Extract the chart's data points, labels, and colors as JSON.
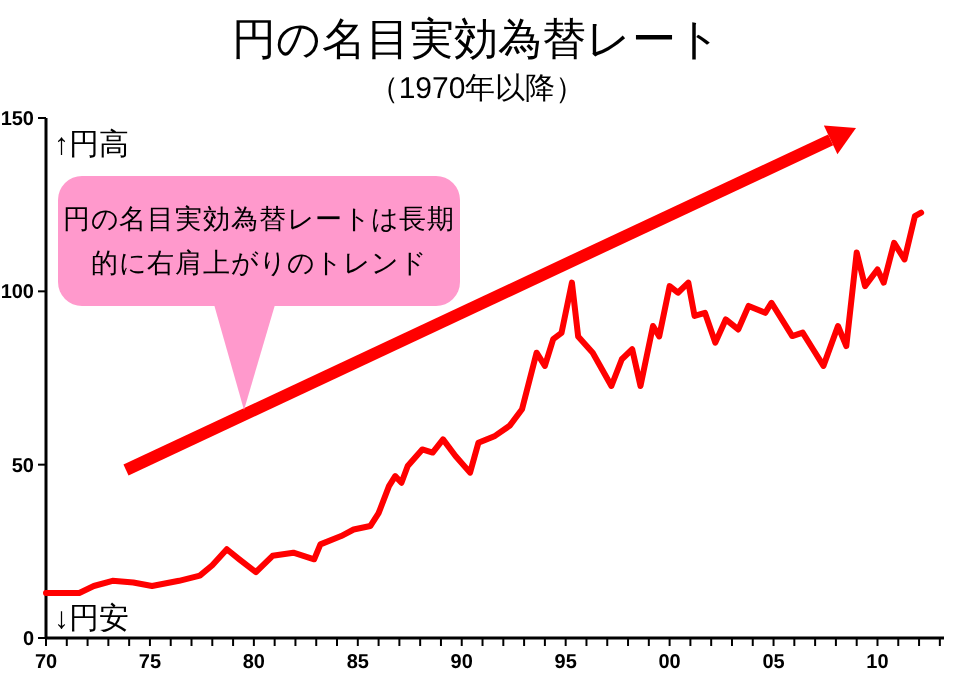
{
  "chart_data": {
    "type": "line",
    "title": "円の名目実効為替レート",
    "subtitle": "（1970年以降）",
    "annotations": [
      "円の名目実効為替レートは長期的に右肩上がりのトレンド",
      "↑円高",
      "↓円安"
    ],
    "x": [
      1970,
      1971.6,
      1972.3,
      1973.2,
      1974.2,
      1975.1,
      1976.4,
      1977.4,
      1978,
      1978.7,
      1979.3,
      1980.1,
      1980.9,
      1981.9,
      1982.9,
      1983.2,
      1984.2,
      1984.8,
      1985.6,
      1986,
      1986.5,
      1986.8,
      1987.1,
      1987.4,
      1988.1,
      1988.6,
      1989.1,
      1989.7,
      1990.4,
      1990.8,
      1991.6,
      1992.3,
      1992.9,
      1993.6,
      1994,
      1994.4,
      1994.8,
      1995.3,
      1995.6,
      1996.3,
      1997.2,
      1997.7,
      1998.2,
      1998.6,
      1999.2,
      1999.5,
      2000,
      2000.4,
      2000.9,
      2001.2,
      2001.7,
      2002.2,
      2002.7,
      2003.3,
      2003.8,
      2004.6,
      2004.9,
      2005.9,
      2006.4,
      2006.9,
      2007.4,
      2008.1,
      2008.5,
      2009,
      2009.4,
      2010,
      2010.3,
      2010.8,
      2011.3,
      2011.8,
      2012.1
    ],
    "series": [
      {
        "color": "#ff0000",
        "values": [
          13,
          13,
          15,
          16.5,
          16,
          15,
          16.5,
          18,
          21,
          25.6,
          22.7,
          19,
          23.7,
          24.6,
          22.7,
          27,
          29.4,
          31.3,
          32.3,
          36,
          43.8,
          46.7,
          44.8,
          49.6,
          54.4,
          53.5,
          57.3,
          52.5,
          47.7,
          56.3,
          58.3,
          61.2,
          66,
          82.3,
          78.5,
          86.2,
          88,
          102.5,
          87,
          82.3,
          72.7,
          80.4,
          83.3,
          72.7,
          90,
          87,
          101.5,
          99.6,
          102.5,
          92.9,
          93.8,
          85.2,
          91.9,
          89,
          95.8,
          93.8,
          96.7,
          87.1,
          88.1,
          83.3,
          78.5,
          90,
          84.2,
          111.2,
          101.5,
          106.3,
          102.5,
          114,
          109.2,
          121.7,
          122.7
        ]
      }
    ],
    "xlim": [
      1970,
      2013.2
    ],
    "ylim": [
      0,
      150
    ],
    "yticks": [
      0,
      50,
      100,
      150
    ],
    "xticks": [
      {
        "value": 1970,
        "label": "70"
      },
      {
        "value": 1971,
        "label": null
      },
      {
        "value": 1972,
        "label": null
      },
      {
        "value": 1973,
        "label": null
      },
      {
        "value": 1974,
        "label": null
      },
      {
        "value": 1975,
        "label": "75"
      },
      {
        "value": 1976,
        "label": null
      },
      {
        "value": 1977,
        "label": null
      },
      {
        "value": 1978,
        "label": null
      },
      {
        "value": 1979,
        "label": null
      },
      {
        "value": 1980,
        "label": "80"
      },
      {
        "value": 1981,
        "label": null
      },
      {
        "value": 1982,
        "label": null
      },
      {
        "value": 1983,
        "label": null
      },
      {
        "value": 1984,
        "label": null
      },
      {
        "value": 1985,
        "label": "85"
      },
      {
        "value": 1986,
        "label": null
      },
      {
        "value": 1987,
        "label": null
      },
      {
        "value": 1988,
        "label": null
      },
      {
        "value": 1989,
        "label": null
      },
      {
        "value": 1990,
        "label": "90"
      },
      {
        "value": 1991,
        "label": null
      },
      {
        "value": 1992,
        "label": null
      },
      {
        "value": 1993,
        "label": null
      },
      {
        "value": 1994,
        "label": null
      },
      {
        "value": 1995,
        "label": "95"
      },
      {
        "value": 1996,
        "label": null
      },
      {
        "value": 1997,
        "label": null
      },
      {
        "value": 1998,
        "label": null
      },
      {
        "value": 1999,
        "label": null
      },
      {
        "value": 2000,
        "label": "00"
      },
      {
        "value": 2001,
        "label": null
      },
      {
        "value": 2002,
        "label": null
      },
      {
        "value": 2003,
        "label": null
      },
      {
        "value": 2004,
        "label": null
      },
      {
        "value": 2005,
        "label": "05"
      },
      {
        "value": 2006,
        "label": null
      },
      {
        "value": 2007,
        "label": null
      },
      {
        "value": 2008,
        "label": null
      },
      {
        "value": 2009,
        "label": null
      },
      {
        "value": 2010,
        "label": "10"
      },
      {
        "value": 2011,
        "label": null
      },
      {
        "value": 2012,
        "label": null
      },
      {
        "value": 2013,
        "label": null
      }
    ],
    "grid": false,
    "marker": "none",
    "line_style": "solid"
  }
}
